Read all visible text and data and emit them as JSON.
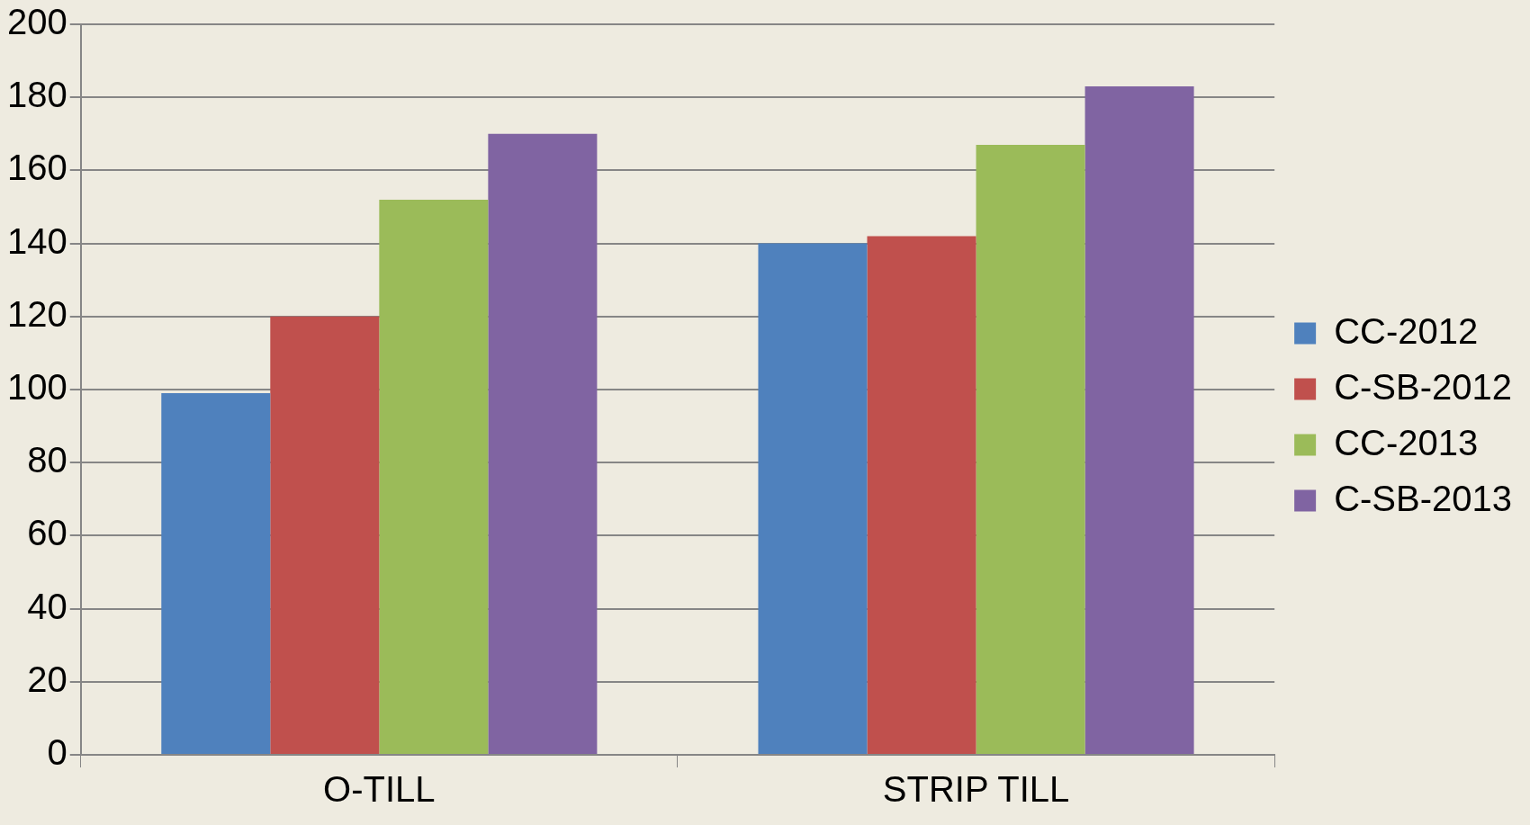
{
  "chart_data": {
    "type": "bar",
    "categories": [
      "O-TILL",
      "STRIP TILL"
    ],
    "series": [
      {
        "name": "CC-2012",
        "color": "#4f81bd",
        "values": [
          99,
          140
        ]
      },
      {
        "name": "C-SB-2012",
        "color": "#c0504d",
        "values": [
          120,
          142
        ]
      },
      {
        "name": "CC-2013",
        "color": "#9bbb59",
        "values": [
          152,
          167
        ]
      },
      {
        "name": "C-SB-2013",
        "color": "#8064a2",
        "values": [
          170,
          183
        ]
      }
    ],
    "ylim": [
      0,
      200
    ],
    "yticks": [
      0,
      20,
      40,
      60,
      80,
      100,
      120,
      140,
      160,
      180,
      200
    ],
    "grid": "y",
    "legend": "right"
  }
}
